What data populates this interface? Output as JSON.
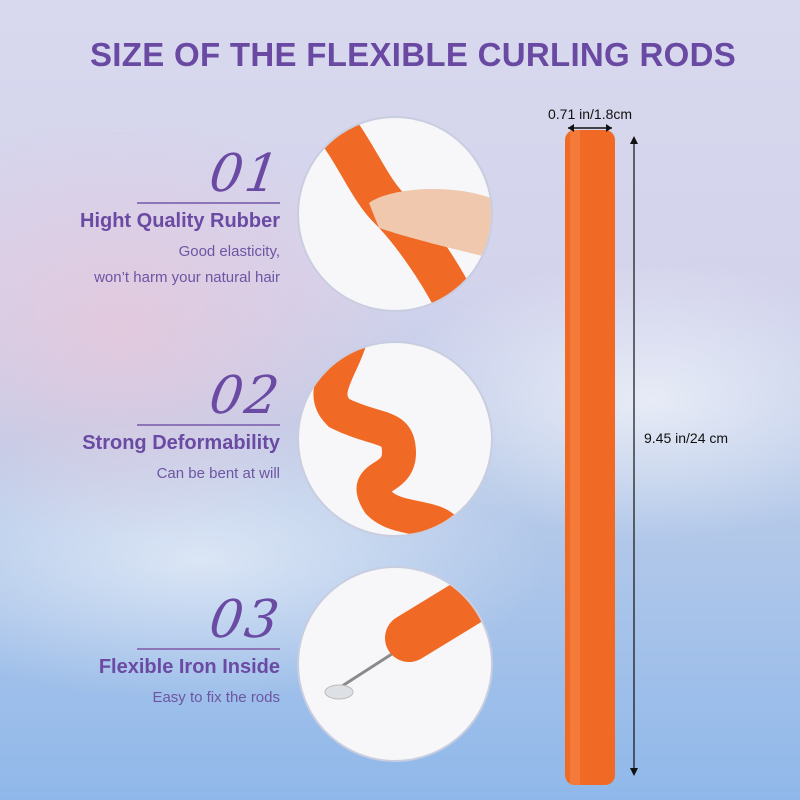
{
  "title": "SIZE OF THE FLEXIBLE CURLING RODS",
  "features": [
    {
      "number": "01",
      "heading": "Hight Quality Rubber",
      "description_lines": [
        "Good elasticity,",
        "won’t harm your natural hair"
      ]
    },
    {
      "number": "02",
      "heading": "Strong Deformability",
      "description_lines": [
        "Can be bent at will"
      ]
    },
    {
      "number": "03",
      "heading": "Flexible Iron Inside",
      "description_lines": [
        "Easy to fix the rods"
      ]
    }
  ],
  "dimensions": {
    "width": "0.71 in/1.8cm",
    "length": "9.45 in/24 cm"
  },
  "colors": {
    "accent": "#6a49a3",
    "rod": "#f06a25"
  }
}
